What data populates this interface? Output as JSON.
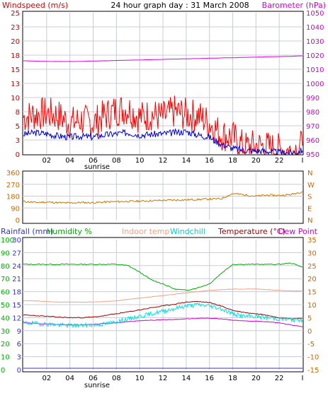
{
  "title": "24 hour graph day : 31 March 2008",
  "colors": {
    "wind_axis": "#cc0000",
    "baro_axis": "#cc00cc",
    "wind_gust": "#ff0000",
    "wind_avg": "#0000cc",
    "baro_line": "#e000e0",
    "dir_axis": "#cc6600",
    "dir_line": "#cc7700",
    "rain": "#3333cc",
    "humidity": "#00aa00",
    "indoor": "#f0a080",
    "windchill": "#00e0e0",
    "temperature": "#990000",
    "dewpoint": "#cc00cc",
    "grid": "#c8ccd8"
  },
  "x_labels": [
    "02",
    "04",
    "06",
    "08",
    "10",
    "12",
    "14",
    "16",
    "18",
    "20",
    "22",
    "I"
  ],
  "sunrise_label": "sunrise",
  "chart_data": [
    {
      "type": "line",
      "title": "24 hour graph day : 31 March 2008",
      "left_axis_label": "Windspeed (m/s)",
      "right_axis_label": "Barometer (hPa)",
      "left_ticks": [
        "25",
        "23",
        "20",
        "18",
        "15",
        "13",
        "10",
        "8",
        "5",
        "3",
        "0"
      ],
      "right_ticks": [
        "1050",
        "1040",
        "1030",
        "1020",
        "1010",
        "1000",
        "990",
        "980",
        "970",
        "960",
        "950"
      ],
      "x": [
        0,
        1,
        2,
        3,
        4,
        5,
        6,
        7,
        8,
        9,
        10,
        11,
        12,
        13,
        14,
        15,
        16,
        17,
        18,
        19,
        20,
        21,
        22,
        23,
        24
      ],
      "series": [
        {
          "name": "Windspeed gust",
          "axis": "left",
          "values": [
            6.5,
            7.0,
            7.2,
            6.8,
            5.5,
            6.0,
            5.5,
            6.8,
            7.8,
            8.0,
            6.5,
            7.0,
            6.5,
            7.5,
            7.0,
            6.8,
            5.5,
            3.5,
            3.0,
            1.2,
            1.5,
            1.2,
            0.8,
            0.5,
            1.5
          ]
        },
        {
          "name": "Windspeed average",
          "axis": "left",
          "values": [
            3.5,
            3.8,
            3.6,
            3.2,
            3.0,
            3.2,
            3.0,
            3.4,
            3.6,
            3.8,
            3.4,
            3.5,
            3.6,
            3.8,
            4.0,
            3.4,
            3.0,
            1.8,
            1.0,
            0.7,
            0.6,
            0.5,
            0.3,
            0.2,
            0.6
          ]
        },
        {
          "name": "Barometer",
          "axis": "right",
          "values": [
            1016,
            1015.8,
            1015.6,
            1015.5,
            1015.5,
            1015.6,
            1015.8,
            1016,
            1016.2,
            1016.4,
            1016.6,
            1016.8,
            1017,
            1017.2,
            1017.4,
            1017.6,
            1017.8,
            1018,
            1018.2,
            1018.4,
            1018.6,
            1018.8,
            1019,
            1019.2,
            1019.5
          ]
        }
      ],
      "xlim": [
        0,
        24
      ],
      "ylim": [
        0,
        25
      ],
      "ylim_right": [
        950,
        1050
      ]
    },
    {
      "type": "line",
      "left_ticks": [
        "360",
        "270",
        "180",
        "90",
        "0"
      ],
      "right_ticks": [
        "N",
        "W",
        "S",
        "E",
        "N"
      ],
      "x": [
        0,
        1,
        2,
        3,
        4,
        5,
        6,
        7,
        8,
        9,
        10,
        11,
        12,
        13,
        14,
        15,
        16,
        17,
        18,
        19,
        20,
        21,
        22,
        23,
        24
      ],
      "series": [
        {
          "name": "Wind direction",
          "values": [
            140,
            132,
            135,
            130,
            128,
            132,
            130,
            135,
            138,
            140,
            142,
            145,
            148,
            150,
            152,
            155,
            158,
            160,
            200,
            190,
            180,
            188,
            185,
            192,
            215
          ]
        }
      ],
      "xlim": [
        0,
        24
      ],
      "ylim": [
        0,
        360
      ]
    },
    {
      "type": "line",
      "legend": [
        "Rainfall (mm)",
        "Humidity %",
        "Indoor temp",
        "Windchill",
        "Temperature (°C)",
        "Dew Point"
      ],
      "rain_ticks": [
        "30",
        "27",
        "24",
        "21",
        "18",
        "15",
        "12",
        "9",
        "6",
        "3",
        "0"
      ],
      "humidity_ticks": [
        "100",
        "90",
        "80",
        "70",
        "60",
        "50",
        "40",
        "30",
        "20",
        "10",
        "0"
      ],
      "temp_ticks": [
        "35",
        "30",
        "25",
        "20",
        "15",
        "10",
        "5",
        "0",
        "-5",
        "-10",
        "-15"
      ],
      "x": [
        0,
        1,
        2,
        3,
        4,
        5,
        6,
        7,
        8,
        9,
        10,
        11,
        12,
        13,
        14,
        15,
        16,
        17,
        18,
        19,
        20,
        21,
        22,
        23,
        24
      ],
      "series": [
        {
          "name": "Humidity %",
          "axis": "humidity",
          "values": [
            81,
            81,
            81,
            81,
            81,
            81,
            81,
            81,
            81,
            80,
            75,
            69,
            66,
            62,
            61,
            63,
            66,
            74,
            81,
            81,
            81,
            81,
            81,
            82,
            79
          ]
        },
        {
          "name": "Indoor temp",
          "axis": "temp",
          "values": [
            11.5,
            11.5,
            11.2,
            11.0,
            11.0,
            11.0,
            11.0,
            11.2,
            11.5,
            12.0,
            12.5,
            13.0,
            13.5,
            14.0,
            14.5,
            15.0,
            15.5,
            15.8,
            16.0,
            16.0,
            16.0,
            15.8,
            15.5,
            15.3,
            15.2
          ]
        },
        {
          "name": "Windchill",
          "axis": "temp",
          "values": [
            3,
            2.8,
            2.5,
            2.2,
            2.0,
            2.0,
            2.2,
            2.5,
            3.5,
            4.5,
            5.5,
            6.5,
            7.5,
            8.5,
            9.5,
            10.0,
            9.5,
            8.5,
            6.5,
            5.5,
            5.5,
            5.0,
            4.5,
            4.2,
            4.0
          ]
        },
        {
          "name": "Temperature (°C)",
          "axis": "temp",
          "values": [
            6.0,
            5.8,
            5.5,
            5.2,
            5.0,
            5.0,
            5.2,
            5.8,
            6.5,
            7.2,
            8.0,
            8.8,
            9.5,
            10.2,
            11.0,
            11.2,
            10.8,
            9.5,
            7.8,
            7.0,
            6.5,
            6.0,
            5.0,
            4.6,
            4.8
          ]
        },
        {
          "name": "Dew Point",
          "axis": "temp",
          "values": [
            3.0,
            2.8,
            2.6,
            2.4,
            2.2,
            2.2,
            2.4,
            2.8,
            3.0,
            3.5,
            3.8,
            4.0,
            4.2,
            4.3,
            4.5,
            4.7,
            4.8,
            4.5,
            4.0,
            3.8,
            3.6,
            3.4,
            3.0,
            2.2,
            1.5
          ]
        },
        {
          "name": "Rainfall (mm)",
          "axis": "rain",
          "values": [
            0,
            0,
            0,
            0,
            0,
            0,
            0,
            0,
            0,
            0,
            0,
            0,
            0,
            0,
            0,
            0,
            0,
            0,
            0,
            0,
            0,
            0,
            0,
            0,
            0
          ]
        }
      ],
      "xlim": [
        0,
        24
      ],
      "ylim_rain": [
        0,
        30
      ],
      "ylim_humidity": [
        0,
        100
      ],
      "ylim_temp": [
        -15,
        35
      ]
    }
  ]
}
